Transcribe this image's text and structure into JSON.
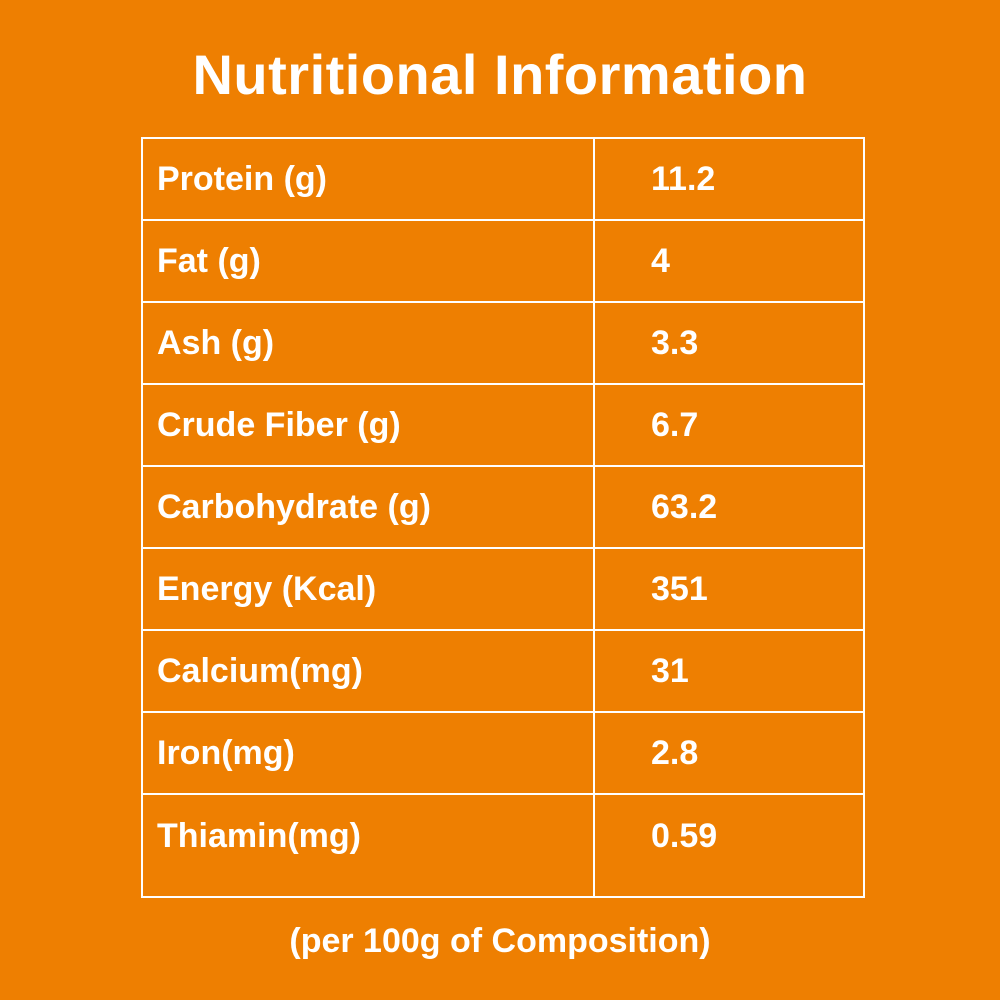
{
  "page": {
    "title": "Nutritional Information",
    "caption": "(per 100g of Composition)",
    "colors": {
      "background": "#EE7F01",
      "text": "#FFFFFF",
      "table_border": "#FFFFFF"
    }
  },
  "table": {
    "unit_note": "per 100g of Composition",
    "rows": [
      {
        "label": "Protein (g)",
        "value": "11.2"
      },
      {
        "label": "Fat (g)",
        "value": "4"
      },
      {
        "label": "Ash (g)",
        "value": "3.3"
      },
      {
        "label": "Crude Fiber (g)",
        "value": "6.7"
      },
      {
        "label": "Carbohydrate (g)",
        "value": "63.2"
      },
      {
        "label": "Energy (Kcal)",
        "value": "351"
      },
      {
        "label": "Calcium(mg)",
        "value": "31"
      },
      {
        "label": "Iron(mg)",
        "value": "2.8"
      },
      {
        "label": "Thiamin(mg)",
        "value": "0.59"
      }
    ]
  }
}
